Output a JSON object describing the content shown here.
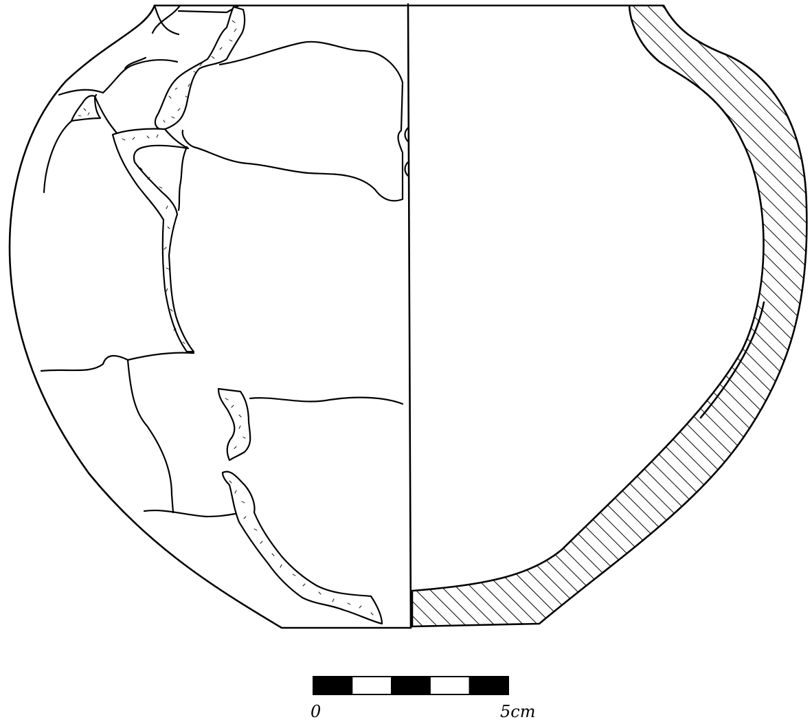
{
  "figure": {
    "subject": "vessel-profile-drawing",
    "hatch_color": "#000000",
    "line_color": "#000000",
    "background": "#ffffff"
  },
  "scale_bar": {
    "start_label": "0",
    "end_label": "5cm",
    "segments": 5,
    "segment_colors": [
      "#000000",
      "#ffffff",
      "#000000",
      "#ffffff",
      "#000000"
    ]
  }
}
